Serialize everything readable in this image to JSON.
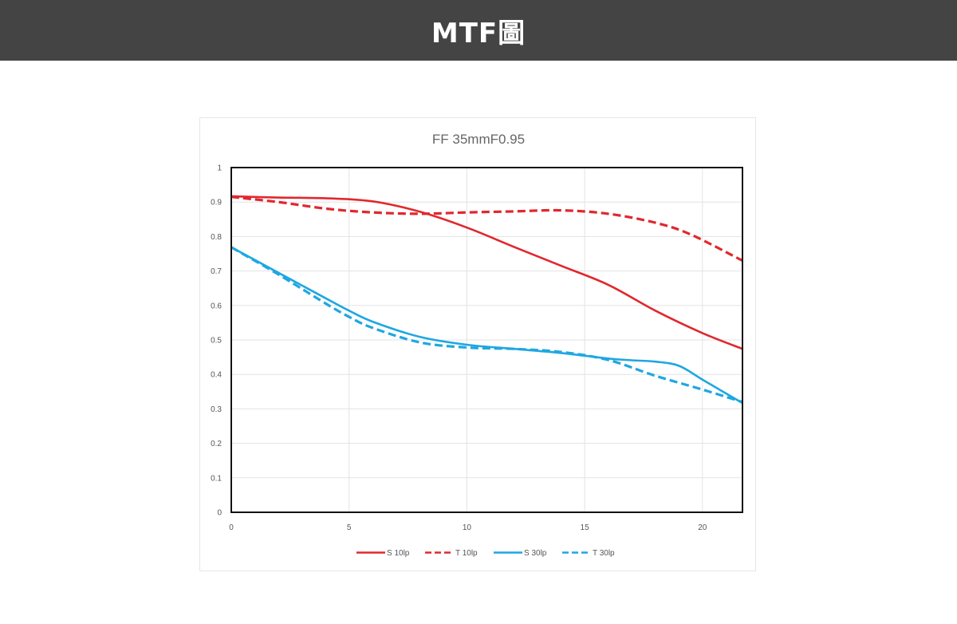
{
  "header": {
    "title": "MTF圖",
    "background": "#444444"
  },
  "chart_data": {
    "type": "line",
    "title": "FF 35mmF0.95",
    "xlabel": "",
    "ylabel": "",
    "xlim": [
      0,
      21.7
    ],
    "ylim": [
      0,
      1
    ],
    "x_ticks": [
      "0",
      "5",
      "10",
      "15",
      "20"
    ],
    "y_ticks": [
      "0",
      "0.1",
      "0.2",
      "0.3",
      "0.4",
      "0.5",
      "0.6",
      "0.7",
      "0.8",
      "0.9",
      "1"
    ],
    "grid": true,
    "legend_position": "bottom",
    "series": [
      {
        "name": "S 10lp",
        "color": "#e0282e",
        "dash": "solid",
        "x": [
          0,
          2,
          4,
          6,
          8,
          10,
          12,
          14,
          16,
          18,
          20,
          21.7
        ],
        "y": [
          0.917,
          0.913,
          0.911,
          0.902,
          0.872,
          0.826,
          0.77,
          0.715,
          0.66,
          0.585,
          0.52,
          0.474
        ]
      },
      {
        "name": "T 10lp",
        "color": "#e0282e",
        "dash": "dashed",
        "x": [
          0,
          2,
          4,
          6,
          8,
          10,
          12,
          14,
          16,
          18,
          19.5,
          21.7
        ],
        "y": [
          0.915,
          0.9,
          0.881,
          0.87,
          0.866,
          0.87,
          0.873,
          0.876,
          0.866,
          0.84,
          0.806,
          0.73
        ]
      },
      {
        "name": "S 30lp",
        "color": "#1ea7e1",
        "dash": "solid",
        "x": [
          0,
          2,
          4,
          5,
          6,
          8,
          10,
          12,
          14,
          16,
          17,
          18,
          19,
          20,
          21.7
        ],
        "y": [
          0.769,
          0.695,
          0.621,
          0.585,
          0.553,
          0.509,
          0.486,
          0.474,
          0.462,
          0.446,
          0.441,
          0.437,
          0.425,
          0.385,
          0.317
        ]
      },
      {
        "name": "T 30lp",
        "color": "#1ea7e1",
        "dash": "dashed",
        "x": [
          0,
          2,
          4,
          5,
          6,
          8,
          10,
          12,
          14,
          16,
          18,
          20,
          21.7
        ],
        "y": [
          0.769,
          0.69,
          0.606,
          0.567,
          0.535,
          0.493,
          0.478,
          0.474,
          0.465,
          0.442,
          0.396,
          0.356,
          0.32
        ]
      }
    ]
  }
}
